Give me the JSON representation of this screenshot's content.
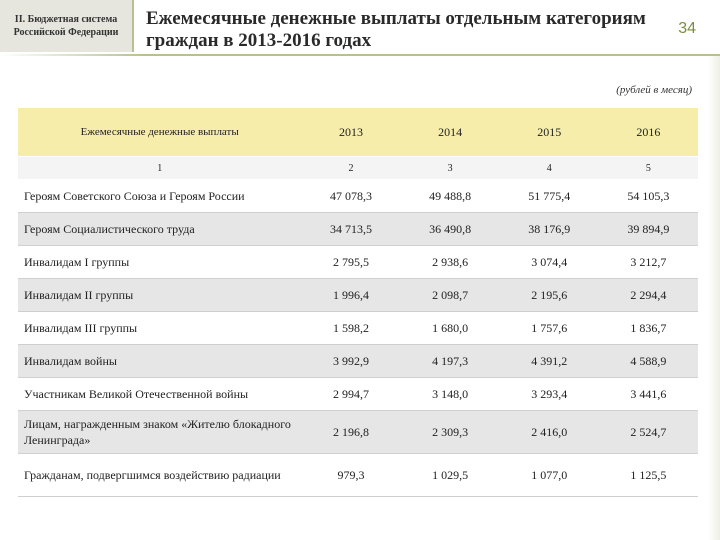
{
  "header": {
    "section_line1": "II. Бюджетная система",
    "section_line2": "Российской Федерации",
    "title_line1": "Ежемесячные денежные выплаты отдельным категориям",
    "title_line2": "граждан в 2013-2016 годах",
    "page_number": "34",
    "units": "(рублей в месяц)"
  },
  "table": {
    "columns": [
      "Ежемесячные денежные выплаты",
      "2013",
      "2014",
      "2015",
      "2016"
    ],
    "column_numbers": [
      "1",
      "2",
      "3",
      "4",
      "5"
    ],
    "rows": [
      {
        "label": "Героям Советского Союза и Героям России",
        "values": [
          "47 078,3",
          "49 488,8",
          "51 775,4",
          "54 105,3"
        ]
      },
      {
        "label": "Героям Социалистического труда",
        "values": [
          "34 713,5",
          "36 490,8",
          "38 176,9",
          "39 894,9"
        ]
      },
      {
        "label": "Инвалидам I группы",
        "values": [
          "2 795,5",
          "2 938,6",
          "3 074,4",
          "3 212,7"
        ]
      },
      {
        "label": "Инвалидам II группы",
        "values": [
          "1 996,4",
          "2 098,7",
          "2 195,6",
          "2 294,4"
        ]
      },
      {
        "label": "Инвалидам III группы",
        "values": [
          "1 598,2",
          "1 680,0",
          "1 757,6",
          "1 836,7"
        ]
      },
      {
        "label": "Инвалидам войны",
        "values": [
          "3 992,9",
          "4 197,3",
          "4 391,2",
          "4 588,9"
        ]
      },
      {
        "label": "Участникам Великой Отечественной войны",
        "values": [
          "2 994,7",
          "3 148,0",
          "3 293,4",
          "3 441,6"
        ]
      },
      {
        "label": "Лицам, награжденным знаком «Жителю блокадного Ленинграда»",
        "values": [
          "2 196,8",
          "2 309,3",
          "2 416,0",
          "2 524,7"
        ]
      },
      {
        "label": "Гражданам, подвергшимся воздействию радиации",
        "values": [
          "979,3",
          "1 029,5",
          "1 077,0",
          "1 125,5"
        ]
      }
    ]
  }
}
